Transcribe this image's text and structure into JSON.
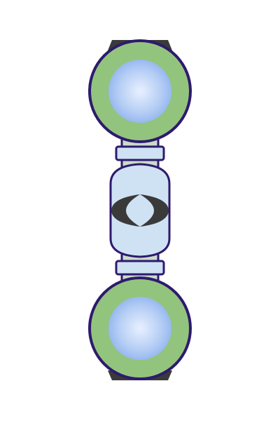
{
  "colors": {
    "outline": "#2e1a6e",
    "cap_dark": "#3a3a3a",
    "ring_green": "#93c47d",
    "lens_center": "#e8f0ff",
    "lens_mid": "#b7cff5",
    "lens_edge": "#8fb2ee",
    "body_fill": "#cfe2f3",
    "shaft_fill": "#c9dcc8",
    "eye_dark": "#3a3a3a",
    "background": "#ffffff"
  },
  "parts": {
    "top_lens": {
      "icon": "lens-icon"
    },
    "bottom_lens": {
      "icon": "lens-icon"
    },
    "center_housing": {
      "icon": "eye-symbol-icon"
    }
  }
}
